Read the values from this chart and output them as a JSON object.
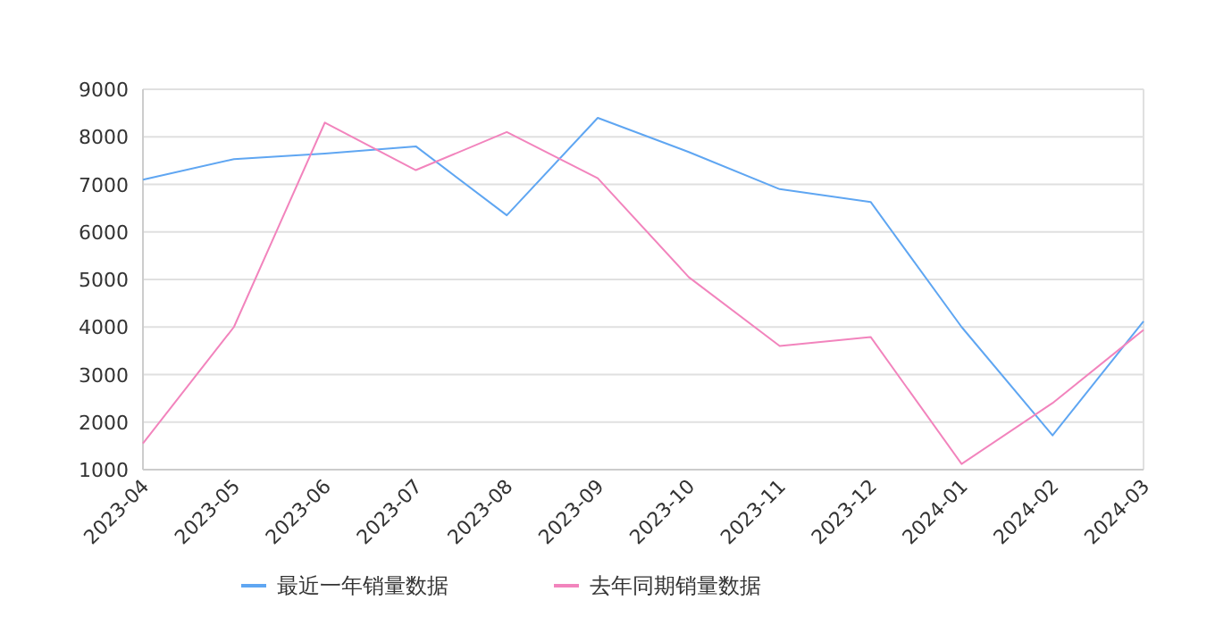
{
  "chart_data": {
    "type": "line",
    "categories": [
      "2023-04",
      "2023-05",
      "2023-06",
      "2023-07",
      "2023-08",
      "2023-09",
      "2023-10",
      "2023-11",
      "2023-12",
      "2024-01",
      "2024-02",
      "2024-03"
    ],
    "series": [
      {
        "name": "最近一年销量数据",
        "color": "#5fa6f2",
        "values": [
          7100,
          7530,
          7650,
          7800,
          6350,
          8400,
          7680,
          6900,
          6630,
          4000,
          1720,
          4120
        ]
      },
      {
        "name": "去年同期销量数据",
        "color": "#f284bd",
        "values": [
          1550,
          4000,
          8300,
          7300,
          8100,
          7130,
          5050,
          3600,
          3790,
          1120,
          2400,
          3940
        ]
      }
    ],
    "ylim": [
      1000,
      9000
    ],
    "yticks": [
      1000,
      2000,
      3000,
      4000,
      5000,
      6000,
      7000,
      8000,
      9000
    ],
    "grid": "y",
    "legend": "bottom",
    "marker": "none",
    "line_style": "solid"
  }
}
